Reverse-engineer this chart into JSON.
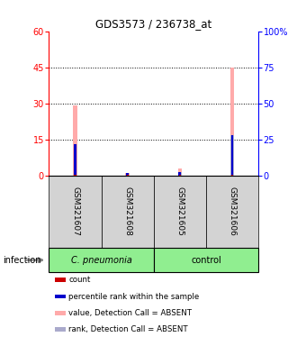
{
  "title": "GDS3573 / 236738_at",
  "samples": [
    "GSM321607",
    "GSM321608",
    "GSM321605",
    "GSM321606"
  ],
  "left_ylim": [
    0,
    60
  ],
  "right_ylim": [
    0,
    100
  ],
  "left_yticks": [
    0,
    15,
    30,
    45,
    60
  ],
  "right_yticks": [
    0,
    25,
    50,
    75,
    100
  ],
  "right_yticklabels": [
    "0",
    "25",
    "50",
    "75",
    "100%"
  ],
  "dotted_lines": [
    15,
    30,
    45
  ],
  "value_absent": [
    29,
    1.2,
    2.8,
    45
  ],
  "rank_absent_pct": [
    22,
    1.5,
    2.5,
    28
  ],
  "rank_pct": [
    22,
    1.5,
    2.5,
    28
  ],
  "count_values": [
    0.4,
    0.4,
    0.4,
    0.4
  ],
  "count_color": "#cc0000",
  "rank_color": "#0000cc",
  "value_absent_color": "#ffaaaa",
  "rank_absent_color": "#aaaacc",
  "sample_box_color": "#d3d3d3",
  "group1_color": "#90ee90",
  "group2_color": "#90ee90",
  "infection_label": "infection",
  "legend_items": [
    {
      "color": "#cc0000",
      "label": "count"
    },
    {
      "color": "#0000cc",
      "label": "percentile rank within the sample"
    },
    {
      "color": "#ffaaaa",
      "label": "value, Detection Call = ABSENT"
    },
    {
      "color": "#aaaacc",
      "label": "rank, Detection Call = ABSENT"
    }
  ]
}
